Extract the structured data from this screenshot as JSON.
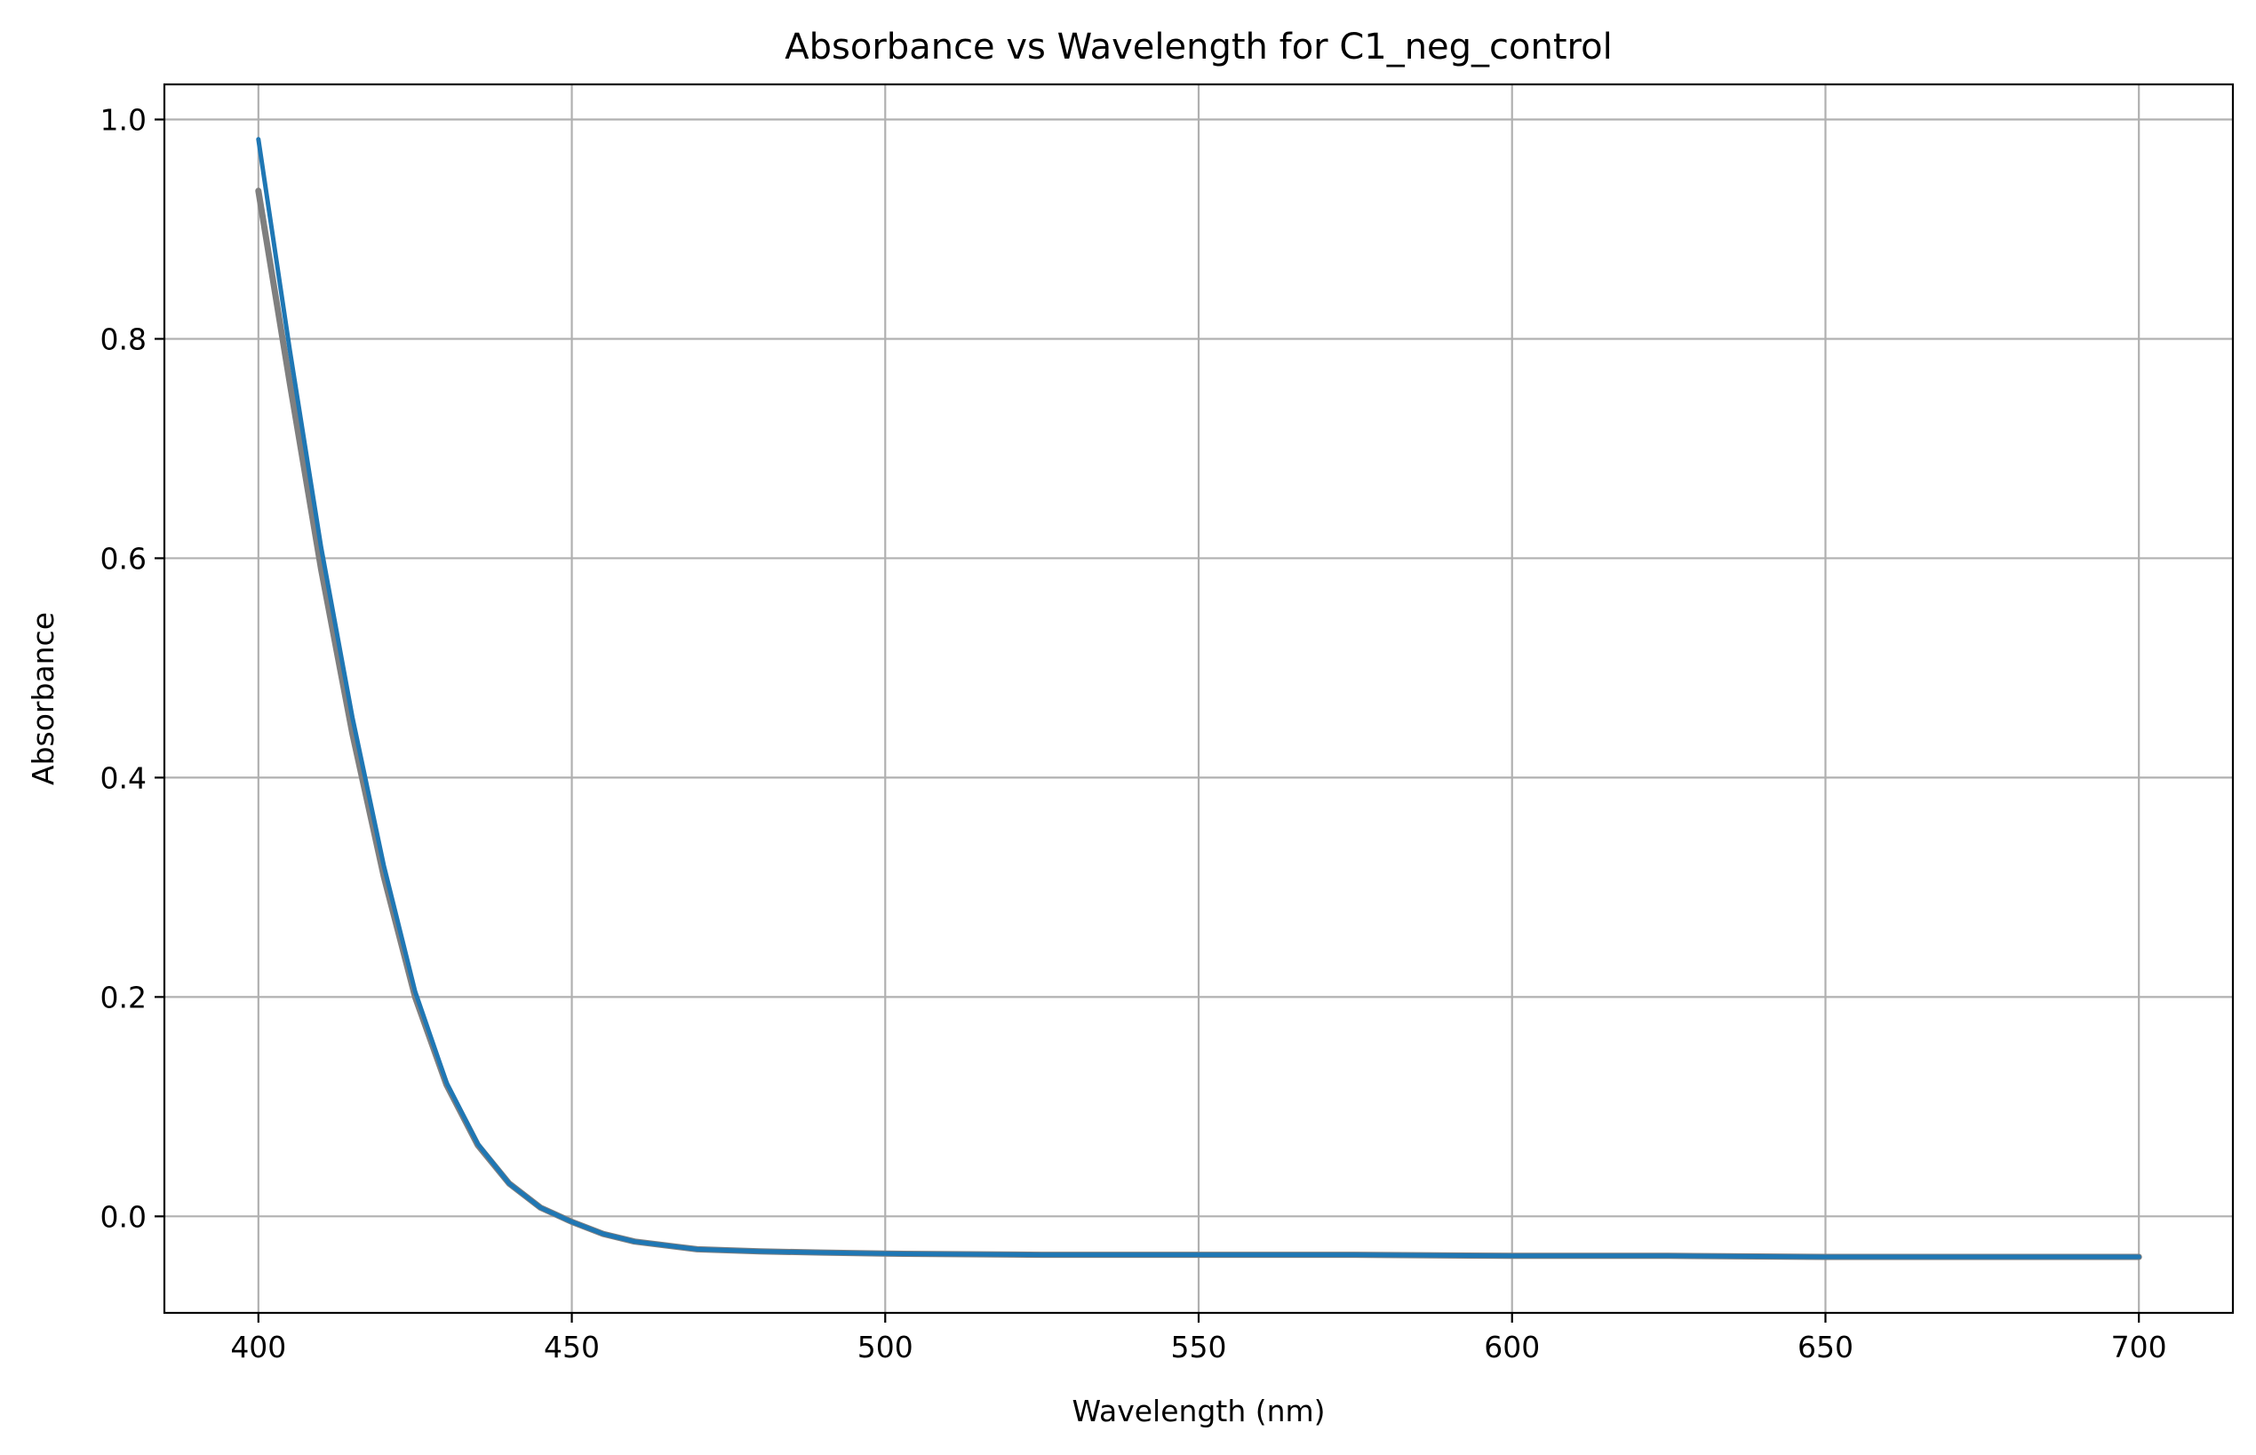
{
  "chart_data": {
    "type": "line",
    "title": "Absorbance vs Wavelength for C1_neg_control",
    "xlabel": "Wavelength (nm)",
    "ylabel": "Absorbance",
    "xlim": [
      385,
      715
    ],
    "ylim": [
      -0.088,
      1.032
    ],
    "grid": true,
    "x_ticks": [
      400,
      450,
      500,
      550,
      600,
      650,
      700
    ],
    "x_tick_labels": [
      "400",
      "450",
      "500",
      "550",
      "600",
      "650",
      "700"
    ],
    "y_ticks": [
      0.0,
      0.2,
      0.4,
      0.6,
      0.8,
      1.0
    ],
    "y_tick_labels": [
      "0.0",
      "0.2",
      "0.4",
      "0.6",
      "0.8",
      "1.0"
    ],
    "series": [
      {
        "color": "#7f7f7f",
        "x": [
          400,
          405,
          410,
          415,
          420,
          425,
          430,
          435,
          440,
          445,
          450,
          455,
          460,
          470,
          480,
          490,
          500,
          525,
          550,
          575,
          600,
          625,
          650,
          675,
          700
        ],
        "y": [
          0.935,
          0.76,
          0.59,
          0.44,
          0.31,
          0.2,
          0.12,
          0.065,
          0.03,
          0.008,
          -0.005,
          -0.016,
          -0.023,
          -0.03,
          -0.032,
          -0.033,
          -0.034,
          -0.035,
          -0.035,
          -0.035,
          -0.036,
          -0.036,
          -0.037,
          -0.037,
          -0.037
        ]
      },
      {
        "color": "#1f77b4",
        "x": [
          400,
          405,
          410,
          415,
          420,
          425,
          430,
          435,
          440,
          445,
          450,
          455,
          460,
          470,
          480,
          490,
          500,
          525,
          550,
          575,
          600,
          625,
          650,
          675,
          700
        ],
        "y": [
          0.982,
          0.79,
          0.61,
          0.455,
          0.32,
          0.205,
          0.122,
          0.066,
          0.03,
          0.008,
          -0.005,
          -0.016,
          -0.023,
          -0.03,
          -0.032,
          -0.033,
          -0.034,
          -0.035,
          -0.035,
          -0.035,
          -0.036,
          -0.036,
          -0.037,
          -0.037,
          -0.037
        ]
      }
    ]
  }
}
